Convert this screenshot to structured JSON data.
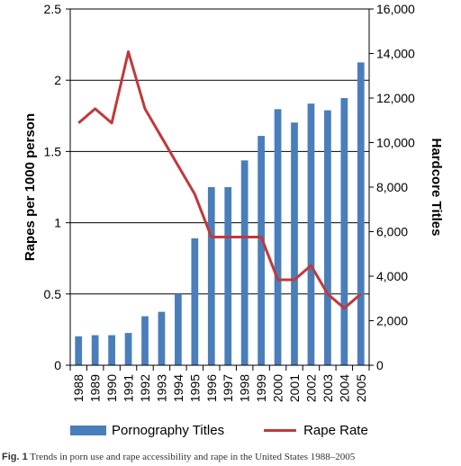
{
  "chart_data": {
    "type": "bar+line",
    "categories": [
      "1988",
      "1989",
      "1990",
      "1991",
      "1992",
      "1993",
      "1994",
      "1995",
      "1996",
      "1997",
      "1998",
      "1999",
      "2000",
      "2001",
      "2002",
      "2003",
      "2004",
      "2005"
    ],
    "series": [
      {
        "name": "Pornography Titles",
        "type": "bar",
        "axis": "right",
        "color": "#4a7ebb",
        "values": [
          1300,
          1350,
          1350,
          1450,
          2200,
          2400,
          3200,
          5700,
          8000,
          8000,
          9200,
          10300,
          11500,
          10900,
          11750,
          11450,
          12000,
          13600
        ]
      },
      {
        "name": "Rape Rate",
        "type": "line",
        "axis": "left",
        "color": "#c0393b",
        "values": [
          1.7,
          1.8,
          1.7,
          2.2,
          1.8,
          1.6,
          1.4,
          1.2,
          0.9,
          0.9,
          0.9,
          0.9,
          0.6,
          0.6,
          0.7,
          0.5,
          0.4,
          0.5
        ]
      }
    ],
    "ylabel_left": "Rapes per 1000 person",
    "ylabel_right": "Hardcore Titles",
    "ylim_left": [
      0,
      2.5
    ],
    "ylim_right": [
      0,
      16000
    ],
    "yticks_left": [
      "0",
      "0.5",
      "1",
      "1.5",
      "2",
      "2.5"
    ],
    "yticks_right": [
      "0",
      "2,000",
      "4,000",
      "6,000",
      "8,000",
      "10,000",
      "12,000",
      "14,000",
      "16,000"
    ],
    "grid": true,
    "legend": "bottom"
  },
  "legend": {
    "bar_label": "Pornography Titles",
    "line_label": "Rape Rate"
  },
  "caption": {
    "prefix": "Fig. 1",
    "text": "Trends in porn use and rape accessibility and rape in the United States 1988–2005"
  }
}
